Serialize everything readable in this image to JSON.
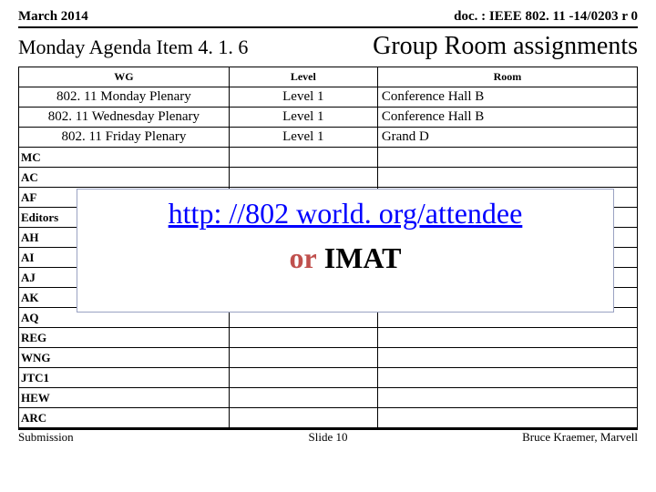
{
  "header": {
    "date": "March 2014",
    "doc": "doc. : IEEE 802. 11 -14/0203 r 0"
  },
  "titles": {
    "agenda": "Monday Agenda Item 4. 1. 6",
    "group": "Group Room assignments"
  },
  "table": {
    "headers": {
      "wg": "WG",
      "level": "Level",
      "room": "Room"
    },
    "plenary": [
      {
        "wg": "802. 11  Monday Plenary",
        "level": "Level 1",
        "room": "Conference Hall B"
      },
      {
        "wg": "802. 11  Wednesday Plenary",
        "level": "Level 1",
        "room": "Conference Hall B"
      },
      {
        "wg": "802. 11  Friday Plenary",
        "level": "Level 1",
        "room": "Grand D"
      }
    ],
    "short_rows": [
      "MC",
      "AC",
      "AF",
      "Editors",
      "AH",
      "AI",
      "AJ",
      "AK",
      "AQ",
      "REG",
      "WNG",
      "JTC1",
      "HEW",
      "ARC"
    ]
  },
  "overlay": {
    "link": "http: //802 world. org/attendee",
    "or": "or",
    "imat": "IMAT"
  },
  "footer": {
    "left": "Submission",
    "center": "Slide 10",
    "right": "Bruce Kraemer, Marvell"
  },
  "style": {
    "link_color": "#0000ff",
    "or_color": "#c0504d",
    "bg": "#ffffff",
    "border": "#000000"
  }
}
